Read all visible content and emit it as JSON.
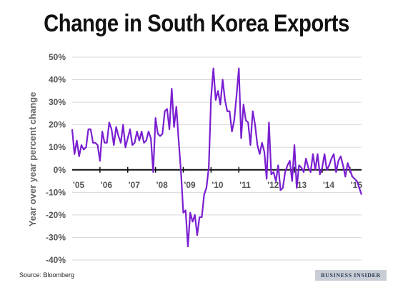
{
  "chart_data": {
    "type": "line",
    "title": "Change in South Korea Exports",
    "ylabel": "Year over year percent change",
    "xlabel": "",
    "ylim": [
      -40,
      50
    ],
    "yticks": [
      "-40%",
      "-30%",
      "-20%",
      "-10%",
      "0%",
      "10%",
      "20%",
      "30%",
      "40%",
      "50%"
    ],
    "xticks": [
      "'05",
      "'06",
      "'07",
      "'08",
      "'09",
      "'10",
      "'11",
      "'12",
      "'13",
      "'14",
      "'15"
    ],
    "grid": true,
    "line_color": "#7a1fd1",
    "series": [
      {
        "values": [
          18,
          7,
          13,
          6,
          11,
          9,
          10,
          18,
          18,
          12,
          12,
          11,
          4,
          17,
          12,
          12,
          21,
          18,
          11,
          19,
          15,
          12,
          20,
          10,
          14,
          18,
          11,
          12,
          17,
          13,
          17,
          12,
          13,
          17,
          14,
          -1,
          23,
          16,
          15,
          16,
          26,
          27,
          18,
          36,
          19,
          28,
          13,
          -1,
          -19,
          -18,
          -34,
          -19,
          -23,
          -20,
          -29,
          -21,
          -21,
          -11,
          -8,
          1,
          32,
          45,
          31,
          35,
          29,
          40,
          31,
          26,
          26,
          17,
          22,
          33,
          45,
          14,
          29,
          22,
          21,
          11,
          26,
          20,
          11,
          7,
          12,
          8,
          -4,
          21,
          -2,
          -1,
          -5,
          2,
          -9,
          -8,
          -1,
          2,
          4,
          -5,
          11,
          -8,
          2,
          1,
          -1,
          5,
          1,
          -1,
          7,
          0,
          7,
          -2,
          1,
          7,
          0,
          2,
          5,
          7,
          -1,
          4,
          6,
          2,
          -3,
          3,
          0,
          -3,
          -4,
          -5,
          -8,
          -11
        ]
      }
    ]
  },
  "source": "Source: Bloomberg",
  "brand": "BUSINESS INSIDER"
}
